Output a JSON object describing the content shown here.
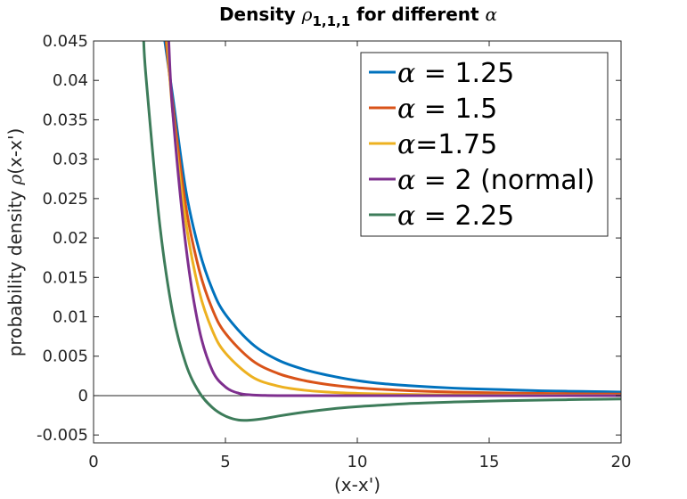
{
  "chart_data": {
    "type": "line",
    "title": {
      "prefix": "Density ",
      "symbol": "ρ",
      "subscript": "1,1,1",
      "suffix": " for different ",
      "symbol2": "α"
    },
    "xlabel": "(x-x')",
    "ylabel": {
      "prefix": "probability density ",
      "symbol": "ρ",
      "suffix": "(x-x')"
    },
    "xlim": [
      0,
      20
    ],
    "ylim": [
      -0.006,
      0.045
    ],
    "xticks": [
      0,
      5,
      10,
      15,
      20
    ],
    "xtick_labels": [
      "0",
      "5",
      "10",
      "15",
      "20"
    ],
    "yticks": [
      -0.005,
      0,
      0.005,
      0.01,
      0.015,
      0.02,
      0.025,
      0.03,
      0.035,
      0.04,
      0.045
    ],
    "ytick_labels": [
      "-0.005",
      "0",
      "0.005",
      "0.01",
      "0.015",
      "0.02",
      "0.025",
      "0.03",
      "0.035",
      "0.04",
      "0.045"
    ],
    "grid": false,
    "zero_line": true,
    "legend_position": "top-right",
    "series": [
      {
        "name": "α = 1.25",
        "symbol": "α",
        "label_rest": " = 1.25",
        "color": "#0072BD",
        "x": [
          2.7,
          3,
          3.5,
          4,
          4.5,
          5,
          6,
          7,
          8,
          9,
          10,
          11,
          12,
          13,
          14,
          15,
          16,
          17,
          18,
          19,
          20
        ],
        "y": [
          0.045,
          0.038,
          0.026,
          0.0185,
          0.0135,
          0.0103,
          0.0066,
          0.0045,
          0.0033,
          0.0025,
          0.0019,
          0.0015,
          0.00125,
          0.00105,
          0.0009,
          0.0008,
          0.0007,
          0.0006,
          0.00055,
          0.0005,
          0.00045
        ]
      },
      {
        "name": "α = 1.5",
        "symbol": "α",
        "label_rest": " = 1.5",
        "color": "#D95319",
        "x": [
          2.75,
          3,
          3.5,
          4,
          4.5,
          5,
          6,
          7,
          8,
          9,
          10,
          11,
          12,
          13,
          14,
          15,
          16,
          17,
          18,
          19,
          20
        ],
        "y": [
          0.045,
          0.037,
          0.024,
          0.016,
          0.011,
          0.0079,
          0.0045,
          0.0028,
          0.0019,
          0.00135,
          0.001,
          0.00078,
          0.00062,
          0.0005,
          0.00042,
          0.00036,
          0.00031,
          0.00027,
          0.00024,
          0.00021,
          0.00019
        ]
      },
      {
        "name": "α=1.75",
        "symbol": "α",
        "label_rest": "=1.75",
        "color": "#EDB120",
        "x": [
          2.8,
          3,
          3.5,
          4,
          4.5,
          5,
          6,
          7,
          8,
          9,
          10,
          11,
          12,
          13,
          14,
          15,
          16,
          17,
          18,
          19,
          20
        ],
        "y": [
          0.045,
          0.036,
          0.022,
          0.0133,
          0.0083,
          0.0054,
          0.0024,
          0.0012,
          0.00068,
          0.00042,
          0.00028,
          0.0002,
          0.00015,
          0.00011,
          9e-05,
          7e-05,
          6e-05,
          5e-05,
          4e-05,
          3.5e-05,
          3e-05
        ]
      },
      {
        "name": "α = 2 (normal)",
        "symbol": "α",
        "label_rest": " = 2 (normal)",
        "color": "#7E2F8E",
        "x": [
          2.85,
          3,
          3.5,
          4,
          4.5,
          5,
          5.5,
          6,
          6.5,
          7,
          8,
          9,
          10,
          11,
          12,
          13,
          14,
          15,
          16,
          17,
          18,
          19,
          20
        ],
        "y": [
          0.045,
          0.036,
          0.019,
          0.0085,
          0.0032,
          0.0011,
          0.0003,
          8e-05,
          2e-05,
          0,
          0,
          0,
          0,
          0,
          0,
          0,
          0,
          0,
          0,
          0,
          0,
          0,
          0
        ]
      },
      {
        "name": "α = 2.25",
        "symbol": "α",
        "label_rest": " = 2.25",
        "color": "#3D7C5A",
        "x": [
          1.9,
          2,
          2.5,
          3,
          3.5,
          4,
          4.5,
          5,
          5.5,
          6,
          6.5,
          7,
          8,
          9,
          10,
          11,
          12,
          13,
          14,
          15,
          16,
          17,
          18,
          19,
          20
        ],
        "y": [
          0.045,
          0.04,
          0.022,
          0.0105,
          0.004,
          0.00045,
          -0.0015,
          -0.0026,
          -0.0031,
          -0.0031,
          -0.0029,
          -0.0026,
          -0.0021,
          -0.0017,
          -0.0014,
          -0.0012,
          -0.001,
          -0.00088,
          -0.00078,
          -0.0007,
          -0.00063,
          -0.00057,
          -0.00052,
          -0.00047,
          -0.00043
        ]
      }
    ]
  }
}
